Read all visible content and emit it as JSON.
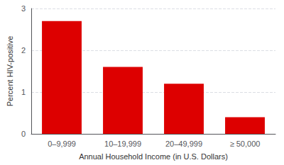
{
  "chart_data": {
    "type": "bar",
    "categories": [
      "0–9,999",
      "10–19,999",
      "20–49,999",
      "≥ 50,000"
    ],
    "values": [
      2.7,
      1.6,
      1.2,
      0.4
    ],
    "color": "#dd0000",
    "xlabel": "Annual Household Income (in U.S. Dollars)",
    "ylabel": "Percent HIV-positive",
    "ylim": [
      0,
      3.0
    ],
    "yticks": [
      0,
      1,
      2,
      3
    ],
    "grid": true
  }
}
